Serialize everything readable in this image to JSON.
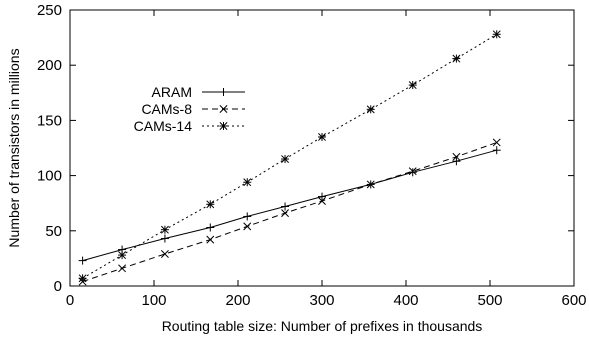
{
  "chart_data": {
    "type": "line",
    "title": "",
    "xlabel": "Routing table size: Number of prefixes in thousands",
    "ylabel": "Number of transistors in millions",
    "xlim": [
      0,
      600
    ],
    "ylim": [
      0,
      250
    ],
    "xticks": [
      "0",
      "100",
      "200",
      "300",
      "400",
      "500",
      "600"
    ],
    "yticks": [
      "0",
      "50",
      "100",
      "150",
      "200",
      "250"
    ],
    "grid": false,
    "legend_position": "upper-left",
    "series": [
      {
        "name": "ARAM",
        "marker": "plus",
        "dash": "solid",
        "x": [
          15,
          62,
          113,
          167,
          211,
          256,
          300,
          358,
          408,
          460,
          508
        ],
        "y": [
          23,
          33,
          43,
          53,
          63,
          72,
          81,
          92,
          103,
          113,
          123
        ]
      },
      {
        "name": "CAMs-8",
        "marker": "x",
        "dash": "dashed",
        "x": [
          15,
          62,
          113,
          167,
          211,
          256,
          300,
          358,
          408,
          460,
          508
        ],
        "y": [
          4,
          16,
          29,
          42,
          54,
          66,
          77,
          92,
          104,
          117,
          130
        ]
      },
      {
        "name": "CAMs-14",
        "marker": "star",
        "dash": "dotted",
        "x": [
          15,
          62,
          113,
          167,
          211,
          256,
          300,
          358,
          408,
          460,
          508
        ],
        "y": [
          7,
          28,
          51,
          74,
          94,
          115,
          135,
          160,
          182,
          206,
          228
        ]
      }
    ]
  }
}
